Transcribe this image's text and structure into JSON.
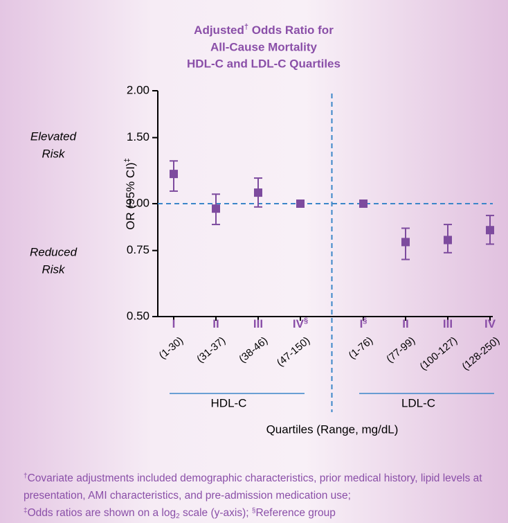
{
  "chart_data": {
    "type": "forest",
    "title": {
      "line1_a": "Adjusted",
      "line1_mark": "†",
      "line1_b": " Odds Ratio for",
      "line2": "All-Cause Mortality",
      "line3": "HDL-C and LDL-C Quartiles"
    },
    "y_label": "OR (95% CI)",
    "y_label_mark": "‡",
    "x_label": "Quartiles (Range, mg/dL)",
    "upper_note": [
      "Elevated",
      "Risk"
    ],
    "lower_note": [
      "Reduced",
      "Risk"
    ],
    "yscale": "log2",
    "ylim": [
      0.5,
      2
    ],
    "yticks": [
      {
        "value": 0.5,
        "label": "0.50"
      },
      {
        "value": 0.75,
        "label": "0.75"
      },
      {
        "value": 1,
        "label": "1.00"
      },
      {
        "value": 1.5,
        "label": "1.50"
      },
      {
        "value": 2,
        "label": "2.00"
      }
    ],
    "reference_line": 1,
    "categories": [
      "I",
      "II",
      "III",
      "IV",
      "I",
      "II",
      "III",
      "IV"
    ],
    "category_marks": [
      null,
      null,
      null,
      "§",
      "§",
      null,
      null,
      null
    ],
    "ranges": [
      "(1-30)",
      "(31-37)",
      "(38-46)",
      "(47-150)",
      "(1-76)",
      "(77-99)",
      "(100-127)",
      "(128-250)"
    ],
    "groups": [
      {
        "name": "HDL-C",
        "count": 4
      },
      {
        "name": "LDL-C",
        "count": 4
      }
    ],
    "color": "#7d4b9e",
    "label_color": "#8a4fa8",
    "line_color": "#3b86c9",
    "values": [
      1.2,
      0.97,
      1.07,
      1,
      1,
      0.79,
      0.8,
      0.85
    ],
    "lower": [
      1.08,
      0.88,
      0.98,
      null,
      null,
      0.71,
      0.74,
      0.78
    ],
    "upper": [
      1.3,
      1.06,
      1.17,
      null,
      null,
      0.86,
      0.88,
      0.93
    ]
  },
  "footnotes": {
    "mark1": "†",
    "text1": "Covariate adjustments included demographic characteristics, prior medical history, lipid levels at presentation, AMI characteristics, and pre-admission medication use;",
    "mark2": "‡",
    "text2a": "Odds ratios are shown on a log",
    "text2sub": "2",
    "text2b": " scale (y-axis); ",
    "mark3": "§",
    "text3": "Reference group"
  }
}
